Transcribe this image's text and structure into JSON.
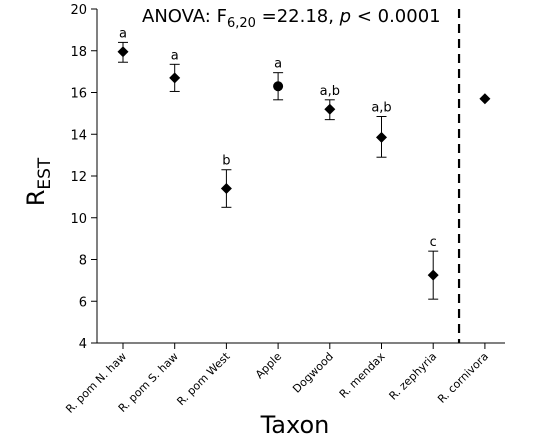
{
  "chart_data": {
    "type": "scatter",
    "annotation": {
      "prefix": "ANOVA: F",
      "subscript": "6,20",
      "middle": " =22.18, ",
      "italic": "p",
      "suffix": " < 0.0001"
    },
    "xlabel": "Taxon",
    "ylabel": {
      "main": "R",
      "sub": "EST"
    },
    "ylim": [
      4,
      20
    ],
    "yticks": [
      4,
      6,
      8,
      10,
      12,
      14,
      16,
      18,
      20
    ],
    "grid": false,
    "categories": [
      "R. pom N. haw",
      "R. pom S. haw",
      "R. pom West",
      "Apple",
      "Dogwood",
      "R. mendax",
      "R. zephyria",
      "R. cornivora"
    ],
    "points": [
      {
        "category": "R. pom N. haw",
        "value": 17.95,
        "lower": 17.45,
        "upper": 18.4,
        "marker": "diamond",
        "letter": "a"
      },
      {
        "category": "R. pom S. haw",
        "value": 16.7,
        "lower": 16.05,
        "upper": 17.35,
        "marker": "diamond",
        "letter": "a"
      },
      {
        "category": "R. pom West",
        "value": 11.4,
        "lower": 10.5,
        "upper": 12.3,
        "marker": "diamond",
        "letter": "b"
      },
      {
        "category": "Apple",
        "value": 16.3,
        "lower": 15.65,
        "upper": 16.95,
        "marker": "circle",
        "letter": "a"
      },
      {
        "category": "Dogwood",
        "value": 15.2,
        "lower": 14.7,
        "upper": 15.65,
        "marker": "diamond",
        "letter": "a,b"
      },
      {
        "category": "R. mendax",
        "value": 13.85,
        "lower": 12.9,
        "upper": 14.85,
        "marker": "diamond",
        "letter": "a,b"
      },
      {
        "category": "R. zephyria",
        "value": 7.25,
        "lower": 6.1,
        "upper": 8.4,
        "marker": "diamond",
        "letter": "c"
      },
      {
        "category": "R. cornivora",
        "value": 15.7,
        "lower": null,
        "upper": null,
        "marker": "diamond",
        "letter": ""
      }
    ],
    "divider_after_category": "R. zephyria"
  }
}
